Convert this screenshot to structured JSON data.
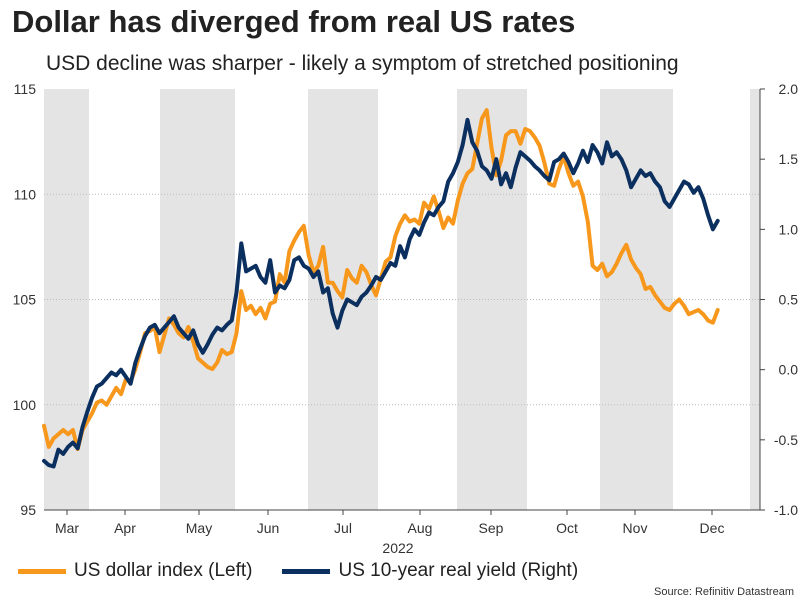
{
  "title": "Dollar has diverged from real US rates",
  "subtitle": "USD decline was sharper - likely a symptom of stretched positioning",
  "source": "Source: Refinitiv Datastream",
  "colors": {
    "usd": "#F7981D",
    "yield": "#0B2F5F",
    "shade": "#E4E4E4",
    "grid": "#BBBBBB",
    "axis": "#444444"
  },
  "chart_data": {
    "type": "line",
    "title": "Dollar has diverged from real US rates",
    "xlabel": "2022",
    "x_ticks": [
      "Mar",
      "Apr",
      "May",
      "Jun",
      "Jul",
      "Aug",
      "Sep",
      "Oct",
      "Nov",
      "Dec"
    ],
    "y_left": {
      "range": [
        95,
        115
      ],
      "ticks": [
        "95",
        "100",
        "105",
        "110",
        "115"
      ]
    },
    "y_right": {
      "range": [
        -1.0,
        2.0
      ],
      "ticks": [
        "-1.0",
        "-0.5",
        "0.0",
        "0.5",
        "1.0",
        "1.5",
        "2.0"
      ]
    },
    "shaded_months": [
      "Mar",
      "May",
      "Jul",
      "Sep",
      "Nov"
    ],
    "series": [
      {
        "name": "US dollar index (Left)",
        "axis": "left",
        "x_day": [
          0,
          2,
          4,
          6,
          8,
          10,
          12,
          14,
          16,
          18,
          20,
          22,
          24,
          26,
          28,
          30,
          32,
          34,
          36,
          38,
          40,
          42,
          44,
          46,
          48,
          50,
          52,
          54,
          56,
          58,
          60,
          62,
          64,
          66,
          68,
          70,
          72,
          74,
          76,
          78,
          80,
          82,
          84,
          86,
          88,
          90,
          92,
          94,
          96,
          98,
          100,
          102,
          104,
          106,
          108,
          110,
          112,
          114,
          116,
          118,
          120,
          122,
          124,
          126,
          128,
          130,
          132,
          134,
          136,
          138,
          140,
          142,
          144,
          146,
          148,
          150,
          152,
          154,
          156,
          158,
          160,
          162,
          164,
          166,
          168,
          170,
          172,
          174,
          176,
          178,
          180,
          182,
          184,
          186,
          188,
          190,
          192,
          194,
          196,
          198,
          200,
          202,
          204,
          206,
          208,
          210,
          212,
          214,
          216,
          218,
          220,
          222,
          224,
          226,
          228,
          230,
          232,
          234,
          236,
          238,
          240,
          242,
          244,
          246,
          248,
          250,
          252,
          254,
          256,
          258,
          260,
          262,
          264,
          266,
          268,
          270,
          272,
          274,
          276,
          278,
          280
        ],
        "values": [
          99.0,
          98.0,
          98.4,
          98.6,
          98.8,
          98.6,
          98.8,
          97.9,
          98.8,
          99.2,
          99.6,
          100.1,
          100.2,
          100.0,
          100.4,
          100.8,
          100.5,
          101.2,
          101.1,
          101.7,
          102.5,
          103.4,
          103.5,
          103.7,
          102.5,
          103.3,
          104.1,
          103.8,
          103.4,
          103.2,
          103.7,
          103.0,
          102.2,
          102.0,
          101.8,
          101.7,
          102.0,
          102.6,
          102.4,
          102.5,
          103.4,
          105.4,
          104.5,
          104.7,
          104.3,
          104.6,
          104.1,
          104.8,
          104.9,
          106.2,
          105.8,
          107.3,
          107.8,
          108.2,
          108.5,
          107.1,
          106.3,
          106.6,
          107.5,
          105.8,
          105.8,
          105.4,
          105.1,
          106.4,
          106.0,
          105.8,
          106.6,
          106.3,
          105.7,
          105.2,
          106.0,
          106.8,
          107.0,
          108.0,
          108.6,
          109.0,
          108.7,
          108.8,
          108.6,
          109.6,
          109.3,
          109.9,
          109.2,
          108.4,
          108.9,
          108.6,
          109.7,
          110.5,
          111.0,
          111.2,
          112.4,
          113.6,
          114.0,
          112.2,
          110.9,
          111.6,
          112.8,
          113.0,
          113.0,
          112.4,
          113.1,
          113.0,
          112.7,
          112.3,
          111.5,
          110.5,
          110.4,
          111.2,
          111.8,
          111.0,
          110.4,
          110.6,
          109.9,
          108.7,
          106.6,
          106.4,
          106.7,
          106.1,
          106.3,
          106.7,
          107.2,
          107.6,
          106.9,
          106.5,
          106.2,
          105.5,
          105.6,
          105.2,
          104.9,
          104.6,
          104.5,
          104.8,
          105.0,
          104.7,
          104.3,
          104.4,
          104.5,
          104.3,
          104.0,
          103.9,
          104.5
        ]
      },
      {
        "name": "US 10-year real yield (Right)",
        "axis": "right",
        "x_day": [
          0,
          2,
          4,
          6,
          8,
          10,
          12,
          14,
          16,
          18,
          20,
          22,
          24,
          26,
          28,
          30,
          32,
          34,
          36,
          38,
          40,
          42,
          44,
          46,
          48,
          50,
          52,
          54,
          56,
          58,
          60,
          62,
          64,
          66,
          68,
          70,
          72,
          74,
          76,
          78,
          80,
          82,
          84,
          86,
          88,
          90,
          92,
          94,
          96,
          98,
          100,
          102,
          104,
          106,
          108,
          110,
          112,
          114,
          116,
          118,
          120,
          122,
          124,
          126,
          128,
          130,
          132,
          134,
          136,
          138,
          140,
          142,
          144,
          146,
          148,
          150,
          152,
          154,
          156,
          158,
          160,
          162,
          164,
          166,
          168,
          170,
          172,
          174,
          176,
          178,
          180,
          182,
          184,
          186,
          188,
          190,
          192,
          194,
          196,
          198,
          200,
          202,
          204,
          206,
          208,
          210,
          212,
          214,
          216,
          218,
          220,
          222,
          224,
          226,
          228,
          230,
          232,
          234,
          236,
          238,
          240,
          242,
          244,
          246,
          248,
          250,
          252,
          254,
          256,
          258,
          260,
          262,
          264,
          266,
          268,
          270,
          272,
          274,
          276,
          278,
          280
        ],
        "values": [
          -0.65,
          -0.68,
          -0.69,
          -0.57,
          -0.6,
          -0.55,
          -0.52,
          -0.56,
          -0.41,
          -0.3,
          -0.2,
          -0.12,
          -0.1,
          -0.06,
          -0.02,
          -0.04,
          0.0,
          -0.05,
          -0.1,
          0.05,
          0.15,
          0.24,
          0.3,
          0.32,
          0.26,
          0.3,
          0.34,
          0.38,
          0.3,
          0.26,
          0.22,
          0.28,
          0.18,
          0.12,
          0.18,
          0.25,
          0.3,
          0.28,
          0.32,
          0.35,
          0.55,
          0.9,
          0.7,
          0.72,
          0.74,
          0.66,
          0.62,
          0.78,
          0.55,
          0.6,
          0.58,
          0.64,
          0.78,
          0.8,
          0.74,
          0.72,
          0.66,
          0.7,
          0.55,
          0.58,
          0.4,
          0.3,
          0.42,
          0.5,
          0.48,
          0.46,
          0.52,
          0.55,
          0.6,
          0.66,
          0.64,
          0.7,
          0.76,
          0.74,
          0.88,
          0.8,
          0.93,
          1.0,
          0.96,
          1.05,
          1.12,
          1.1,
          1.16,
          1.2,
          1.34,
          1.4,
          1.48,
          1.6,
          1.78,
          1.62,
          1.56,
          1.45,
          1.42,
          1.36,
          1.5,
          1.32,
          1.4,
          1.3,
          1.44,
          1.55,
          1.52,
          1.49,
          1.45,
          1.42,
          1.38,
          1.35,
          1.48,
          1.5,
          1.54,
          1.48,
          1.4,
          1.47,
          1.56,
          1.48,
          1.6,
          1.55,
          1.47,
          1.62,
          1.52,
          1.55,
          1.5,
          1.42,
          1.3,
          1.36,
          1.42,
          1.38,
          1.4,
          1.34,
          1.3,
          1.2,
          1.16,
          1.22,
          1.28,
          1.34,
          1.32,
          1.26,
          1.3,
          1.22,
          1.1,
          1.0,
          1.06
        ]
      }
    ],
    "legend": [
      "US dollar index (Left)",
      "US 10-year real yield (Right)"
    ],
    "grid": true,
    "legend_position": "bottom-left"
  }
}
